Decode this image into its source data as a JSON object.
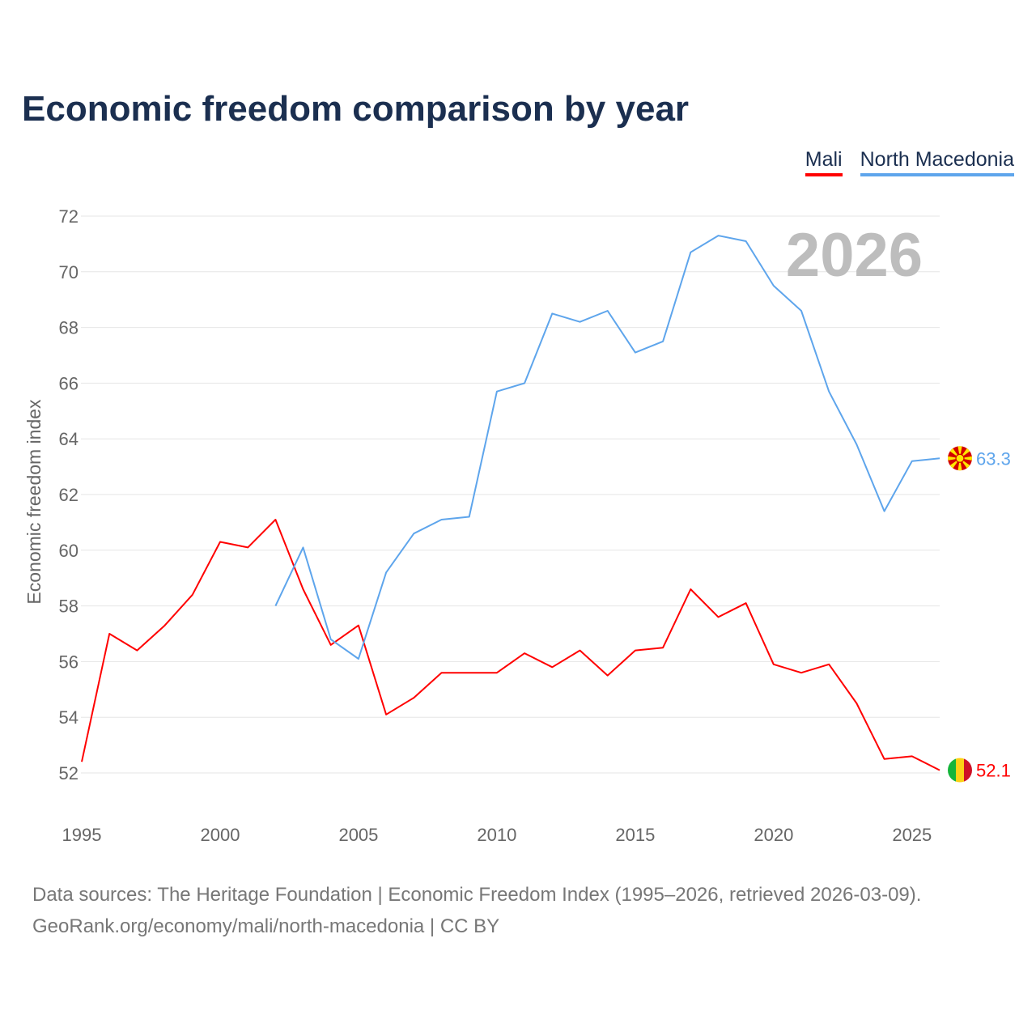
{
  "title": "Economic freedom comparison by year",
  "legend": [
    {
      "label": "Mali",
      "color": "#ff0000"
    },
    {
      "label": "North Macedonia",
      "color": "#5ea5ec"
    }
  ],
  "watermark_year": "2026",
  "footer": {
    "line1": "Data sources: The Heritage Foundation | Economic Freedom Index (1995–2026, retrieved 2026-03-09).",
    "line2": "GeoRank.org/economy/mali/north-macedonia | CC BY"
  },
  "chart_data": {
    "type": "line",
    "title": "Economic freedom comparison by year",
    "xlabel": "",
    "ylabel": "Economic freedom index",
    "xlim": [
      1995,
      2026
    ],
    "ylim": [
      52,
      72
    ],
    "x_ticks": [
      1995,
      2000,
      2005,
      2010,
      2015,
      2020,
      2025
    ],
    "y_ticks": [
      52,
      54,
      56,
      58,
      60,
      62,
      64,
      66,
      68,
      70,
      72
    ],
    "grid": true,
    "legend_position": "top-right",
    "series": [
      {
        "name": "Mali",
        "color": "#ff0000",
        "flag": "mali-flag",
        "end_label": "52.1",
        "x": [
          1995,
          1996,
          1997,
          1998,
          1999,
          2000,
          2001,
          2002,
          2003,
          2004,
          2005,
          2006,
          2007,
          2008,
          2009,
          2010,
          2011,
          2012,
          2013,
          2014,
          2015,
          2016,
          2017,
          2018,
          2019,
          2020,
          2021,
          2022,
          2023,
          2024,
          2025,
          2026
        ],
        "values": [
          52.4,
          57.0,
          56.4,
          57.3,
          58.4,
          60.3,
          60.1,
          61.1,
          58.6,
          56.6,
          57.3,
          54.1,
          54.7,
          55.6,
          55.6,
          55.6,
          56.3,
          55.8,
          56.4,
          55.5,
          56.4,
          56.5,
          58.6,
          57.6,
          58.1,
          55.9,
          55.6,
          55.9,
          54.5,
          52.5,
          52.6,
          52.1
        ]
      },
      {
        "name": "North Macedonia",
        "color": "#5ea5ec",
        "flag": "north-macedonia-flag",
        "end_label": "63.3",
        "x": [
          2002,
          2003,
          2004,
          2005,
          2006,
          2007,
          2008,
          2009,
          2010,
          2011,
          2012,
          2013,
          2014,
          2015,
          2016,
          2017,
          2018,
          2019,
          2020,
          2021,
          2022,
          2023,
          2024,
          2025,
          2026
        ],
        "values": [
          58.0,
          60.1,
          56.8,
          56.1,
          59.2,
          60.6,
          61.1,
          61.2,
          65.7,
          66.0,
          68.5,
          68.2,
          68.6,
          67.1,
          67.5,
          70.7,
          71.3,
          71.1,
          69.5,
          68.6,
          65.7,
          63.8,
          61.4,
          63.2,
          63.3
        ]
      }
    ]
  }
}
